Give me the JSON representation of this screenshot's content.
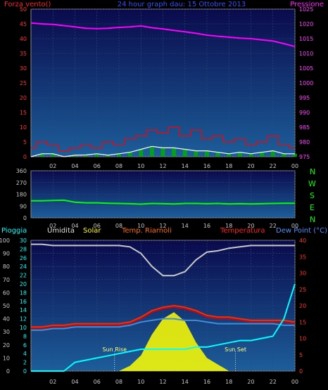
{
  "colors": {
    "background": "#000000",
    "panel_top": "#0a0a4c",
    "panel_bottom": "#1c5e9a",
    "grid": "#2a4f7a",
    "axis_text": "#c8c8c8",
    "wind_avg": "#ffffff",
    "wind_gust": "#ff0000",
    "wind_bars": "#00b000",
    "pressure": "#ff00ff",
    "wind_dir": "#00ff00",
    "rain": "#00ffff",
    "humidity": "#c8c8c8",
    "solar": "#ffff00",
    "apparent_temp": "#ff2a00",
    "temperature": "#d60000",
    "dew_point": "#3f8fd8"
  },
  "header": {
    "left_label": "Forza vento()",
    "title": "24 hour graph dau: 15 Ottobre 2013",
    "right_label": "Pressione"
  },
  "x_ticks": [
    "02",
    "04",
    "06",
    "08",
    "10",
    "12",
    "14",
    "16",
    "18",
    "20",
    "22",
    "00"
  ],
  "legend": {
    "rain": "Pioggia",
    "humidity": "Umidita",
    "solar": "Solar",
    "apparent": "Temp. Riarnoli",
    "temperature": "Temperatura",
    "dew_point": "Dew Point (°C)"
  },
  "compass": [
    "N",
    "W",
    "S",
    "E",
    "N"
  ],
  "annotations": {
    "sunrise": "Sun Rise",
    "sunset": "Sun Set"
  },
  "chart_data": [
    {
      "type": "line",
      "panel": "wind-pressure",
      "title": "24 hour graph dau: 15 Ottobre 2013",
      "xlabel": "",
      "ylabel_left": "Forza vento()",
      "ylabel_right": "Pressione",
      "x_hours": [
        0,
        1,
        2,
        3,
        4,
        5,
        6,
        7,
        8,
        9,
        10,
        11,
        12,
        13,
        14,
        15,
        16,
        17,
        18,
        19,
        20,
        21,
        22,
        23,
        24
      ],
      "ylim_left": [
        0,
        50
      ],
      "yticks_left": [
        0,
        5,
        10,
        15,
        20,
        25,
        30,
        35,
        40,
        45,
        50
      ],
      "ylim_right": [
        975,
        1025
      ],
      "yticks_right": [
        975,
        980,
        985,
        990,
        995,
        1000,
        1005,
        1010,
        1015,
        1020,
        1025
      ],
      "series": [
        {
          "name": "Pressione",
          "axis": "right",
          "values": [
            1020.3,
            1020.0,
            1019.8,
            1019.4,
            1019.0,
            1018.5,
            1018.4,
            1018.5,
            1018.8,
            1019.0,
            1019.3,
            1018.7,
            1018.3,
            1017.8,
            1017.3,
            1016.8,
            1016.2,
            1015.8,
            1015.5,
            1015.2,
            1015.0,
            1014.6,
            1014.2,
            1013.3,
            1012.3
          ]
        },
        {
          "name": "gust",
          "axis": "left",
          "values": [
            3,
            5,
            4,
            2,
            3,
            4,
            3,
            5,
            4,
            6,
            7,
            9,
            8,
            10,
            7,
            9,
            6,
            7,
            5,
            6,
            4,
            5,
            7,
            4,
            3
          ]
        },
        {
          "name": "avg",
          "axis": "left",
          "values": [
            0,
            1,
            1,
            0,
            0.5,
            0.6,
            1,
            0.5,
            1,
            1.5,
            2.5,
            3.5,
            3,
            3,
            2.5,
            2,
            2,
            1.5,
            1,
            1.5,
            1,
            1.5,
            2,
            1,
            1
          ]
        }
      ]
    },
    {
      "type": "line",
      "panel": "wind-direction",
      "xlabel": "",
      "ylabel": "",
      "x_hours": [
        0,
        1,
        2,
        3,
        4,
        5,
        6,
        7,
        8,
        9,
        10,
        11,
        12,
        13,
        14,
        15,
        16,
        17,
        18,
        19,
        20,
        21,
        22,
        23,
        24
      ],
      "ylim": [
        0,
        360
      ],
      "yticks": [
        0,
        90,
        180,
        270,
        360
      ],
      "series": [
        {
          "name": "direction",
          "values": [
            130,
            130,
            133,
            135,
            120,
            115,
            115,
            112,
            110,
            108,
            105,
            110,
            108,
            106,
            110,
            110,
            108,
            110,
            106,
            108,
            106,
            108,
            110,
            112,
            112
          ]
        }
      ]
    },
    {
      "type": "line",
      "panel": "temp-humidity-solar-rain",
      "xlabel": "",
      "ylabel": "",
      "x_hours": [
        0,
        1,
        2,
        3,
        4,
        5,
        6,
        7,
        8,
        9,
        10,
        11,
        12,
        13,
        14,
        15,
        16,
        17,
        18,
        19,
        20,
        21,
        22,
        23,
        24
      ],
      "ylim_humidity": [
        0,
        100
      ],
      "yticks_humidity": [
        0,
        10,
        20,
        30,
        40,
        50,
        60,
        70,
        80,
        90,
        100
      ],
      "ylim_rain": [
        0,
        30
      ],
      "yticks_rain": [
        0,
        2,
        4,
        6,
        8,
        10,
        12,
        14,
        16,
        18,
        20,
        22,
        24,
        26,
        28,
        30
      ],
      "ylim_temp": [
        0,
        40
      ],
      "yticks_temp": [
        0,
        5,
        10,
        15,
        20,
        25,
        30,
        35,
        40
      ],
      "series": [
        {
          "name": "Umidita",
          "axis": "humidity",
          "values": [
            97,
            97,
            96,
            96,
            96,
            96,
            96,
            96,
            96,
            95,
            90,
            80,
            73,
            73,
            76,
            85,
            91,
            92,
            94,
            95,
            96,
            96,
            96,
            96,
            96
          ]
        },
        {
          "name": "Temperatura",
          "axis": "temp",
          "values": [
            13,
            13,
            13.5,
            13.5,
            14,
            14,
            14,
            14,
            14,
            14.5,
            16,
            18,
            19,
            19.5,
            19,
            18,
            16.5,
            16,
            16,
            15.5,
            15,
            15,
            15,
            15,
            14.5
          ]
        },
        {
          "name": "Temp. Riarnoli",
          "axis": "temp",
          "values": [
            13.5,
            13.5,
            14,
            14,
            14.5,
            14.5,
            14.5,
            14.5,
            14.5,
            15,
            16.5,
            18.5,
            19.5,
            20,
            19.5,
            18.5,
            17,
            16.5,
            16.5,
            16,
            15.5,
            15.5,
            15.5,
            15.5,
            15
          ]
        },
        {
          "name": "Dew Point (°C)",
          "axis": "temp",
          "values": [
            12.5,
            12.5,
            13,
            13,
            13.5,
            13.5,
            13.5,
            13.5,
            13.5,
            14,
            15,
            15.5,
            16,
            16,
            15.5,
            15.5,
            15,
            14.5,
            14.5,
            14.5,
            14.5,
            14.5,
            14.5,
            14,
            14
          ]
        },
        {
          "name": "Pioggia",
          "axis": "rain",
          "values": [
            0,
            0,
            0,
            0,
            2,
            2.5,
            3,
            3.5,
            4,
            4.5,
            5,
            5,
            5,
            5,
            5,
            5.5,
            5.5,
            6,
            6.5,
            7,
            7,
            7.5,
            8,
            12,
            20
          ]
        },
        {
          "name": "Solar",
          "axis": "humidity",
          "values": [
            0,
            0,
            0,
            0,
            0,
            0,
            0,
            0,
            0,
            4,
            12,
            28,
            40,
            45,
            38,
            22,
            10,
            5,
            0,
            0,
            0,
            0,
            0,
            0,
            0
          ]
        }
      ],
      "sunrise_hour": 7.6,
      "sunset_hour": 18.6
    }
  ]
}
